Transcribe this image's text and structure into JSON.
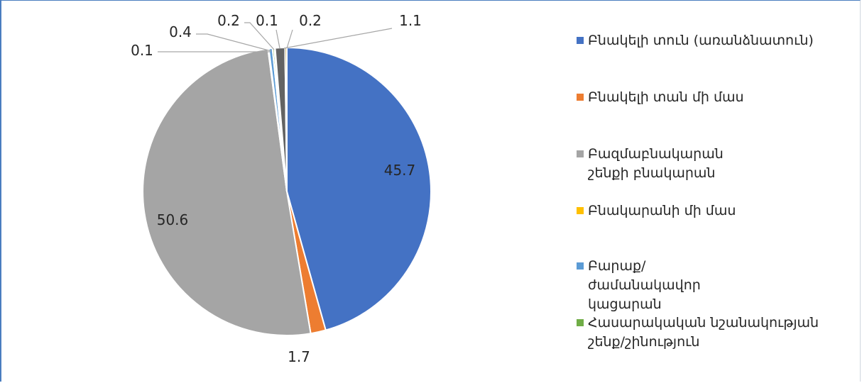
{
  "chart_data": {
    "type": "pie",
    "start_angle_deg": 0,
    "direction": "clockwise",
    "slices": [
      {
        "label": "Բնակելի տուն (առանձնատուն)",
        "value": 45.7,
        "color": "#4472c4"
      },
      {
        "label": "Բնակելի տան մի մաս",
        "value": 1.7,
        "color": "#ed7d31"
      },
      {
        "label": "Բազմաբնակարան շենքի բնակարան",
        "value": 50.6,
        "color": "#a5a5a5"
      },
      {
        "label": "Բնակարանի մի մաս",
        "value": 0.1,
        "color": "#ffc000"
      },
      {
        "label": "Բարաք/ժամանակավոր կացարան",
        "value": 0.4,
        "color": "#5b9bd5"
      },
      {
        "label": "Հասարակական նշանակության շենք/շինություն",
        "value": 0.2,
        "color": "#70ad47"
      },
      {
        "label": "",
        "value": 0.1,
        "color": "#264478"
      },
      {
        "label": "",
        "value": 1.1,
        "color": "#636363"
      },
      {
        "label": "",
        "value": 0.2,
        "color": "#997300"
      }
    ],
    "data_labels": [
      "45.7",
      "1.7",
      "50.6",
      "0.1",
      "0.4",
      "0.2",
      "0.1",
      "1.1",
      "0.2"
    ],
    "legend_position": "right",
    "legend_entries": [
      "Բնակելի տուն (առանձնատուն)",
      "Բնակելի տան մի մաս",
      "Բազմաբնակարան շենքի բնակարան",
      "Բնակարանի մի մաս",
      "Բարաք/ժամանակավոր կացարան",
      "Հասարակական նշանակության շենք/շինություն"
    ]
  }
}
